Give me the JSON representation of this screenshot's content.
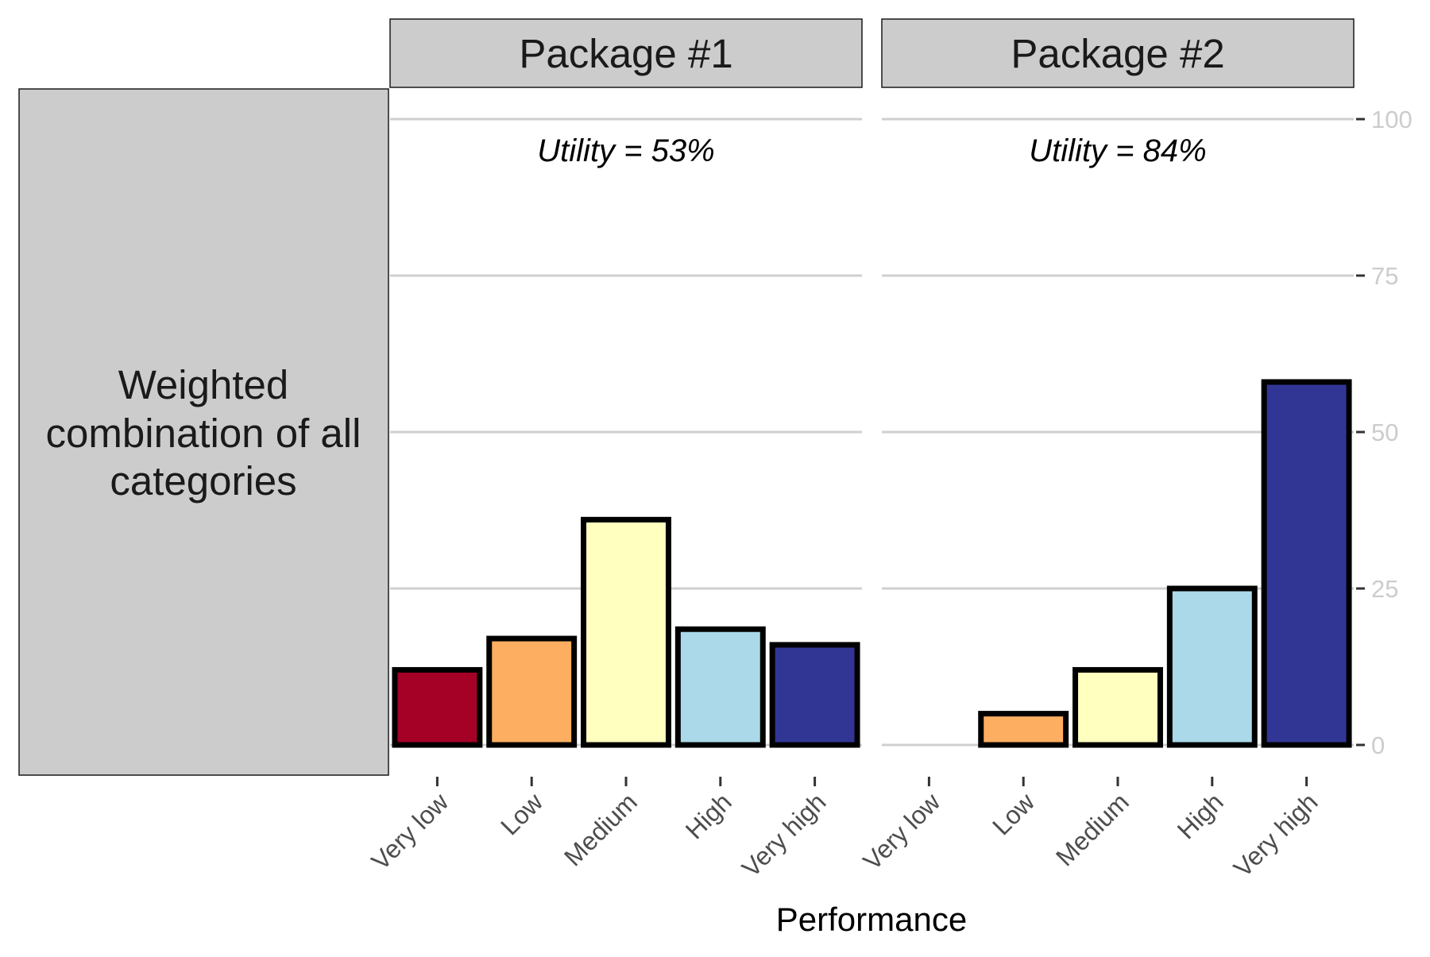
{
  "chart_data": {
    "type": "bar",
    "row_strip_label": [
      "Weighted",
      "combination of all",
      "categories"
    ],
    "categories": [
      "Very low",
      "Low",
      "Medium",
      "High",
      "Very high"
    ],
    "category_colors": [
      "#a50026",
      "#fdae61",
      "#ffffbf",
      "#abd9e9",
      "#313695"
    ],
    "xlabel": "Performance",
    "ylabel": "",
    "ylim": [
      0,
      100
    ],
    "yticks": [
      0,
      25,
      50,
      75,
      100
    ],
    "grid": "horizontal",
    "y_axis_position": "right",
    "panels": [
      {
        "name": "Package #1",
        "annotation": "Utility = 53%",
        "values": [
          12,
          17,
          36,
          18.5,
          16
        ]
      },
      {
        "name": "Package #2",
        "annotation": "Utility = 84%",
        "values": [
          0,
          5,
          12,
          25,
          58
        ]
      }
    ]
  }
}
